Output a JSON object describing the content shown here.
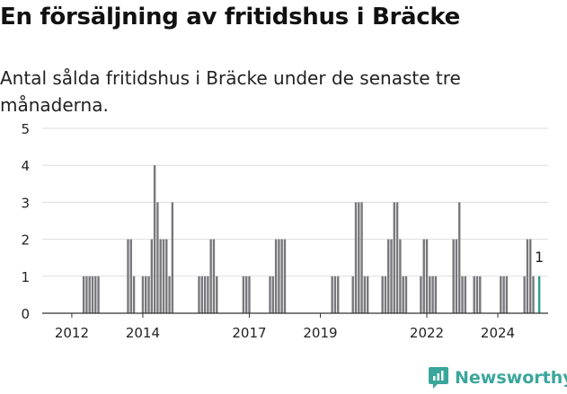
{
  "title": "En försäljning av fritidshus i Bräcke",
  "subtitle": "Antal sålda fritidshus i Bräcke under de senaste tre månaderna.",
  "brand": {
    "name": "Newsworthy",
    "color": "#3aa69b"
  },
  "colors": {
    "bar": "#77767b",
    "highlight": "#2a9d8f",
    "axis": "#333333",
    "grid": "#dddddd"
  },
  "chart_data": {
    "type": "bar",
    "title": "En försäljning av fritidshus i Bräcke",
    "subtitle": "Antal sålda fritidshus i Bräcke under de senaste tre månaderna.",
    "xlabel": "",
    "ylabel": "",
    "ylim": [
      0,
      5
    ],
    "yticks": [
      0,
      1,
      2,
      3,
      4,
      5
    ],
    "xlim": [
      "2011-03",
      "2025-06"
    ],
    "xticks": [
      {
        "label": "2012",
        "date": "2012-01"
      },
      {
        "label": "2014",
        "date": "2014-01"
      },
      {
        "label": "2017",
        "date": "2017-01"
      },
      {
        "label": "2019",
        "date": "2019-01"
      },
      {
        "label": "2022",
        "date": "2022-01"
      },
      {
        "label": "2024",
        "date": "2024-01"
      }
    ],
    "grid": true,
    "data_label": {
      "date": "2025-03",
      "text": "1"
    },
    "highlight": "2025-03",
    "series": [
      {
        "x": [
          "2012-05",
          "2012-06",
          "2012-07",
          "2012-08",
          "2012-09",
          "2012-10",
          "2013-08",
          "2013-09",
          "2013-10",
          "2014-01",
          "2014-02",
          "2014-03",
          "2014-04",
          "2014-05",
          "2014-06",
          "2014-07",
          "2014-08",
          "2014-09",
          "2014-10",
          "2014-11",
          "2015-08",
          "2015-09",
          "2015-10",
          "2015-11",
          "2015-12",
          "2016-01",
          "2016-02",
          "2016-11",
          "2016-12",
          "2017-01",
          "2017-08",
          "2017-09",
          "2017-10",
          "2017-11",
          "2017-12",
          "2018-01",
          "2019-05",
          "2019-06",
          "2019-07",
          "2019-12",
          "2020-01",
          "2020-02",
          "2020-03",
          "2020-04",
          "2020-05",
          "2020-10",
          "2020-11",
          "2020-12",
          "2021-01",
          "2021-02",
          "2021-03",
          "2021-04",
          "2021-05",
          "2021-06",
          "2021-11",
          "2021-12",
          "2022-01",
          "2022-02",
          "2022-03",
          "2022-04",
          "2022-10",
          "2022-11",
          "2022-12",
          "2023-01",
          "2023-02",
          "2023-05",
          "2023-06",
          "2023-07",
          "2024-02",
          "2024-03",
          "2024-04",
          "2024-10",
          "2024-11",
          "2024-12",
          "2025-01",
          "2025-03"
        ],
        "values": [
          1,
          1,
          1,
          1,
          1,
          1,
          2,
          2,
          1,
          1,
          1,
          1,
          2,
          4,
          3,
          2,
          2,
          2,
          1,
          3,
          1,
          1,
          1,
          1,
          2,
          2,
          1,
          1,
          1,
          1,
          1,
          1,
          2,
          2,
          2,
          2,
          1,
          1,
          1,
          1,
          3,
          3,
          3,
          1,
          1,
          1,
          1,
          2,
          2,
          3,
          3,
          2,
          1,
          1,
          1,
          2,
          2,
          1,
          1,
          1,
          2,
          2,
          3,
          1,
          1,
          1,
          1,
          1,
          1,
          1,
          1,
          1,
          2,
          2,
          1,
          1
        ]
      }
    ]
  }
}
